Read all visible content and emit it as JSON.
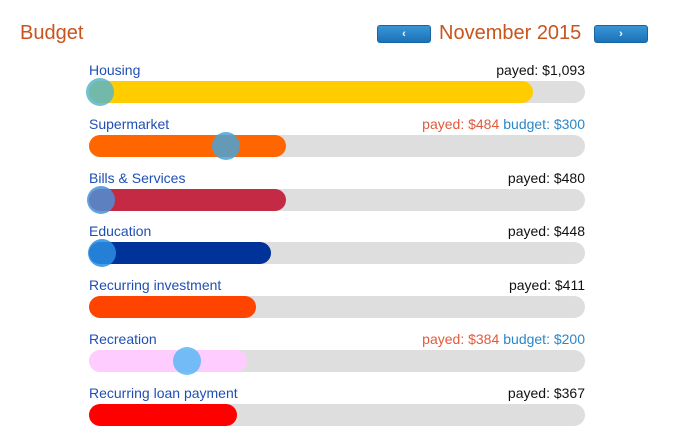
{
  "header": {
    "title": "Budget",
    "month": "November 2015",
    "prev_icon": "chevron-left-icon",
    "next_icon": "chevron-right-icon",
    "prev_glyph": "‹",
    "next_glyph": "›"
  },
  "rows": [
    {
      "label": "Housing",
      "payed": "payed: $1,093",
      "budget": "",
      "over": false,
      "fill": 0.896,
      "knob": 0.023,
      "color": "#ffcc00",
      "knob_color": "#5bb5c7"
    },
    {
      "label": "Supermarket",
      "payed": "payed: $484",
      "budget": "budget: $300",
      "over": true,
      "fill": 0.397,
      "knob": 0.276,
      "color": "#ff6600",
      "knob_color": "#4aa3d6"
    },
    {
      "label": "Bills & Services",
      "payed": "payed: $480",
      "budget": "",
      "over": false,
      "fill": 0.397,
      "knob": 0.025,
      "color": "#c42a44",
      "knob_color": "#4b8fd6"
    },
    {
      "label": "Education",
      "payed": "payed: $448",
      "budget": "",
      "over": false,
      "fill": 0.367,
      "knob": 0.027,
      "color": "#003399",
      "knob_color": "#2a8de0"
    },
    {
      "label": "Recurring investment",
      "payed": "payed: $411",
      "budget": "",
      "over": false,
      "fill": 0.337,
      "knob": null,
      "color": "#ff4400",
      "knob_color": ""
    },
    {
      "label": "Recreation",
      "payed": "payed: $384",
      "budget": "budget: $200",
      "over": true,
      "fill": 0.318,
      "knob": 0.198,
      "color": "#ffccff",
      "knob_color": "#5ab7f5"
    },
    {
      "label": "Recurring loan payment",
      "payed": "payed: $367",
      "budget": "",
      "over": false,
      "fill": 0.299,
      "knob": null,
      "color": "#ff0000",
      "knob_color": ""
    }
  ]
}
